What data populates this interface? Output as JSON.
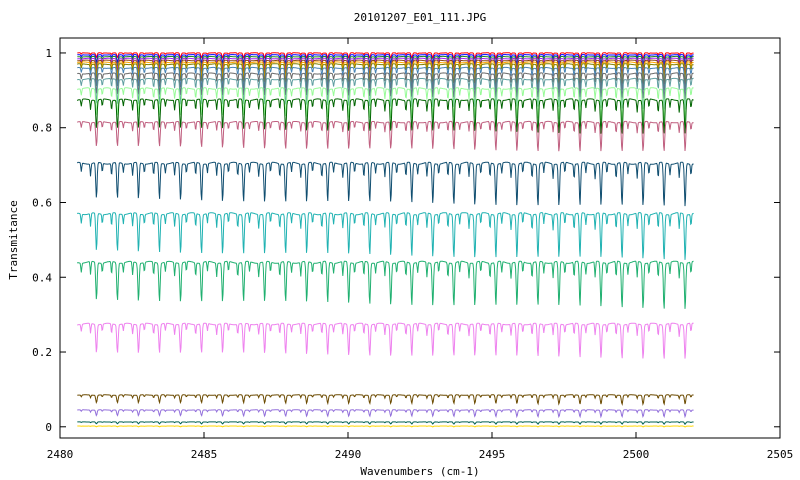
{
  "chart_data": {
    "type": "line",
    "title": "20101207_E01_111.JPG",
    "xlabel": "Wavenumbers (cm-1)",
    "ylabel": "Transmitance",
    "xlim": [
      2480,
      2505
    ],
    "ylim": [
      -0.03,
      1.04
    ],
    "xticks": [
      2480,
      2485,
      2490,
      2495,
      2500,
      2505
    ],
    "yticks": [
      0,
      0.2,
      0.4,
      0.6,
      0.8,
      1
    ],
    "xtick_labels": [
      "2480",
      "2485",
      "2490",
      "2495",
      "2500",
      "2505"
    ],
    "ytick_labels": [
      "0",
      "0.2",
      "0.4",
      "0.6",
      "0.8",
      "1"
    ],
    "grid": false,
    "legend": "none",
    "x_range_data": [
      2480.6,
      2502.0
    ],
    "line_period_cm1": 0.73,
    "series": [
      {
        "baseline": 1.0,
        "depth": 0.012,
        "color": "#ff0000"
      },
      {
        "baseline": 0.995,
        "depth": 0.02,
        "color": "#0000ff"
      },
      {
        "baseline": 0.99,
        "depth": 0.025,
        "color": "#228b22"
      },
      {
        "baseline": 0.985,
        "depth": 0.03,
        "color": "#a020f0"
      },
      {
        "baseline": 0.98,
        "depth": 0.035,
        "color": "#8b4513"
      },
      {
        "baseline": 0.975,
        "depth": 0.04,
        "color": "#ffa500"
      },
      {
        "baseline": 0.97,
        "depth": 0.045,
        "color": "#808000"
      },
      {
        "baseline": 0.96,
        "depth": 0.05,
        "color": "#4682b4"
      },
      {
        "baseline": 0.945,
        "depth": 0.055,
        "color": "#696969"
      },
      {
        "baseline": 0.93,
        "depth": 0.065,
        "color": "#5f9ea0"
      },
      {
        "baseline": 0.905,
        "depth": 0.07,
        "color": "#98fb98"
      },
      {
        "baseline": 0.875,
        "depth": 0.075,
        "color": "#006400"
      },
      {
        "baseline": 0.815,
        "depth": 0.065,
        "color": "#c06080"
      },
      {
        "baseline": 0.705,
        "depth": 0.095,
        "color": "#104e70"
      },
      {
        "baseline": 0.57,
        "depth": 0.1,
        "color": "#20b2b2"
      },
      {
        "baseline": 0.44,
        "depth": 0.1,
        "color": "#20b070"
      },
      {
        "baseline": 0.275,
        "depth": 0.075,
        "color": "#ee82ee"
      },
      {
        "baseline": 0.085,
        "depth": 0.02,
        "color": "#6b4a00"
      },
      {
        "baseline": 0.045,
        "depth": 0.015,
        "color": "#9370db"
      },
      {
        "baseline": 0.013,
        "depth": 0.005,
        "color": "#006050"
      },
      {
        "baseline": 0.002,
        "depth": 0.002,
        "color": "#ffd700"
      }
    ]
  }
}
